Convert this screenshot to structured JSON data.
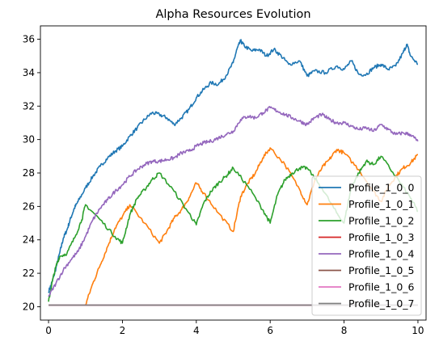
{
  "chart_data": {
    "type": "line",
    "title": "Alpha Resources Evolution",
    "xlabel": "",
    "ylabel": "",
    "xlim": [
      -0.22,
      10.22
    ],
    "ylim": [
      19.2,
      36.8
    ],
    "xticks": [
      0,
      2,
      4,
      6,
      8,
      10
    ],
    "yticks": [
      20,
      22,
      24,
      26,
      28,
      30,
      32,
      34,
      36
    ],
    "grid": false,
    "legend_position": "lower-right",
    "series": [
      {
        "name": "Profile_1_0_0",
        "color": "#1f77b4",
        "x": [
          0,
          0.1,
          0.2,
          0.3,
          0.4,
          0.5,
          0.6,
          0.7,
          0.8,
          1.0,
          1.2,
          1.4,
          1.6,
          1.8,
          2.0,
          2.2,
          2.4,
          2.6,
          2.8,
          3.0,
          3.2,
          3.4,
          3.6,
          3.8,
          4.0,
          4.2,
          4.4,
          4.6,
          4.8,
          5.0,
          5.1,
          5.2,
          5.3,
          5.5,
          5.7,
          5.9,
          6.1,
          6.3,
          6.5,
          6.8,
          7.0,
          7.2,
          7.5,
          7.8,
          8.0,
          8.2,
          8.4,
          8.6,
          8.8,
          9.0,
          9.2,
          9.4,
          9.6,
          9.7,
          9.8,
          10.0
        ],
        "y": [
          20.9,
          21.5,
          22.3,
          23.2,
          24.1,
          24.6,
          25.3,
          25.9,
          26.3,
          27.1,
          27.8,
          28.4,
          28.9,
          29.3,
          29.6,
          30.2,
          30.7,
          31.2,
          31.6,
          31.5,
          31.3,
          30.9,
          31.3,
          31.8,
          32.5,
          33.0,
          33.4,
          33.3,
          33.8,
          34.6,
          35.4,
          35.9,
          35.6,
          35.3,
          35.4,
          35.0,
          35.4,
          35.0,
          34.5,
          34.7,
          33.8,
          34.1,
          34.0,
          34.4,
          34.2,
          34.7,
          33.9,
          33.9,
          34.3,
          34.5,
          34.2,
          34.4,
          35.2,
          35.7,
          35.0,
          34.5
        ]
      },
      {
        "name": "Profile_1_0_1",
        "color": "#ff7f0e",
        "x": [
          1.0,
          1.2,
          1.4,
          1.6,
          1.8,
          2.0,
          2.2,
          2.6,
          3.0,
          3.2,
          3.4,
          3.6,
          3.8,
          4.0,
          4.2,
          4.6,
          5.0,
          5.2,
          5.4,
          5.6,
          5.8,
          6.0,
          6.4,
          6.8,
          7.0,
          7.2,
          7.4,
          7.6,
          7.8,
          8.0,
          8.4,
          8.8,
          9.0,
          9.2,
          9.4,
          9.6,
          9.8,
          10.0
        ],
        "y": [
          20.1,
          21.4,
          22.5,
          23.6,
          24.7,
          25.4,
          26.1,
          25.0,
          23.8,
          24.5,
          25.3,
          25.8,
          26.5,
          27.4,
          26.8,
          25.6,
          24.5,
          26.6,
          27.4,
          28.0,
          28.9,
          29.5,
          28.5,
          27.0,
          26.1,
          27.5,
          28.3,
          28.8,
          29.4,
          29.2,
          28.2,
          26.9,
          26.3,
          27.2,
          27.8,
          28.3,
          28.6,
          29.1
        ]
      },
      {
        "name": "Profile_1_0_2",
        "color": "#2ca02c",
        "x": [
          0,
          0.1,
          0.2,
          0.3,
          0.5,
          0.7,
          0.9,
          1.0,
          1.4,
          1.8,
          2.0,
          2.2,
          2.4,
          2.6,
          2.8,
          3.0,
          3.4,
          3.8,
          4.0,
          4.2,
          4.4,
          4.6,
          4.8,
          5.0,
          5.4,
          5.8,
          6.0,
          6.2,
          6.4,
          6.6,
          6.8,
          7.0,
          7.4,
          7.8,
          8.0,
          8.2,
          8.4,
          8.6,
          8.8,
          9.0,
          9.4,
          9.8,
          10.0
        ],
        "y": [
          20.3,
          21.5,
          22.4,
          23.0,
          23.2,
          24.1,
          25.2,
          26.1,
          25.2,
          24.2,
          23.8,
          25.5,
          26.5,
          27.0,
          27.6,
          28.0,
          26.9,
          25.6,
          24.9,
          26.2,
          26.9,
          27.4,
          27.8,
          28.3,
          27.2,
          25.8,
          25.0,
          26.7,
          27.6,
          28.0,
          28.3,
          28.3,
          27.1,
          25.6,
          25.0,
          27.2,
          28.0,
          28.7,
          28.5,
          29.0,
          27.8,
          26.5,
          25.7
        ]
      },
      {
        "name": "Profile_1_0_3",
        "color": "#d62728",
        "x": [
          0,
          10
        ],
        "y": [
          20.1,
          20.1
        ]
      },
      {
        "name": "Profile_1_0_4",
        "color": "#9467bd",
        "x": [
          0,
          0.2,
          0.4,
          0.6,
          0.8,
          1.0,
          1.2,
          1.4,
          1.6,
          1.8,
          2.0,
          2.2,
          2.4,
          2.6,
          2.8,
          3.0,
          3.2,
          3.4,
          3.6,
          3.8,
          4.0,
          4.2,
          4.4,
          4.6,
          4.8,
          5.0,
          5.2,
          5.4,
          5.6,
          5.8,
          6.0,
          6.2,
          6.4,
          6.6,
          6.8,
          7.0,
          7.2,
          7.4,
          7.6,
          7.8,
          8.0,
          8.2,
          8.4,
          8.6,
          8.8,
          9.0,
          9.2,
          9.4,
          9.6,
          9.8,
          10.0
        ],
        "y": [
          20.6,
          21.4,
          22.2,
          22.8,
          23.3,
          24.2,
          25.2,
          25.9,
          26.4,
          26.9,
          27.3,
          27.8,
          28.2,
          28.5,
          28.7,
          28.7,
          28.8,
          28.9,
          29.2,
          29.3,
          29.6,
          29.8,
          29.9,
          30.1,
          30.3,
          30.5,
          31.2,
          31.4,
          31.3,
          31.6,
          31.9,
          31.7,
          31.5,
          31.3,
          31.1,
          30.9,
          31.3,
          31.5,
          31.2,
          31.0,
          31.0,
          30.8,
          30.6,
          30.7,
          30.5,
          30.9,
          30.6,
          30.3,
          30.4,
          30.3,
          29.9
        ]
      },
      {
        "name": "Profile_1_0_5",
        "color": "#8c564b",
        "x": [
          0,
          10
        ],
        "y": [
          20.1,
          20.1
        ]
      },
      {
        "name": "Profile_1_0_6",
        "color": "#e377c2",
        "x": [
          0,
          10
        ],
        "y": [
          20.1,
          20.1
        ]
      },
      {
        "name": "Profile_1_0_7",
        "color": "#7f7f7f",
        "x": [
          0,
          10
        ],
        "y": [
          20.1,
          20.1
        ]
      }
    ]
  }
}
